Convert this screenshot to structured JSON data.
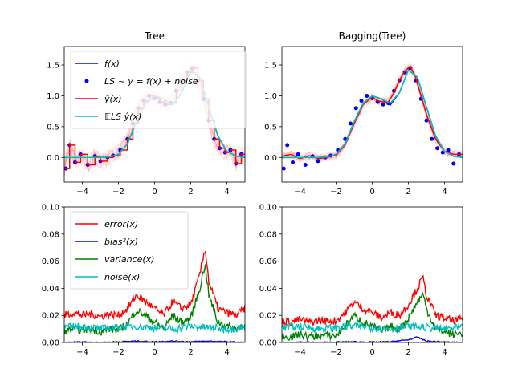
{
  "chart_data": [
    {
      "type": "line",
      "title": "Tree",
      "xlim": [
        -5,
        5
      ],
      "ylim": [
        -0.4,
        1.8
      ],
      "xticks": [
        -4,
        -2,
        0,
        2,
        4
      ],
      "xtick_labels": [
        "−4",
        "−2",
        "0",
        "2",
        "4"
      ],
      "yticks": [
        0.0,
        0.5,
        1.0,
        1.5
      ],
      "ytick_labels": [
        "0.0",
        "0.5",
        "1.0",
        "1.5"
      ],
      "legend_position": "top-left",
      "legend": [
        {
          "label": "f(x)",
          "color": "#0000ff",
          "marker": "line"
        },
        {
          "label": "LS ~ y = f(x) + noise",
          "color": "#0000ff",
          "marker": "dot"
        },
        {
          "label": "ŷ(x)",
          "color": "#ff0000",
          "marker": "line"
        },
        {
          "label": "𝔼LS ŷ(x)",
          "color": "#00bfbf",
          "marker": "line"
        }
      ],
      "series": [
        {
          "role": "f",
          "color": "#0000ff",
          "x": [
            -5,
            -4.5,
            -4,
            -3.5,
            -3,
            -2.5,
            -2,
            -1.5,
            -1,
            -0.5,
            0,
            0.5,
            1,
            1.5,
            2,
            2.5,
            3,
            3.5,
            4,
            4.5,
            5
          ],
          "y": [
            0.0,
            0.0,
            0.0,
            0.0,
            0.0,
            0.01,
            0.05,
            0.22,
            0.58,
            0.88,
            1.0,
            0.95,
            0.85,
            1.05,
            1.42,
            1.3,
            0.82,
            0.35,
            0.1,
            0.02,
            0.0
          ]
        },
        {
          "role": "samples",
          "color": "#0000ff",
          "x": [
            -4.9,
            -4.7,
            -4.4,
            -4.1,
            -3.7,
            -3.3,
            -3.0,
            -2.6,
            -2.3,
            -1.9,
            -1.5,
            -1.2,
            -0.9,
            -0.6,
            -0.3,
            0.0,
            0.3,
            0.6,
            0.9,
            1.2,
            1.5,
            1.8,
            2.1,
            2.4,
            2.7,
            3.0,
            3.3,
            3.6,
            3.9,
            4.2,
            4.5,
            4.8
          ],
          "y": [
            -0.18,
            0.2,
            -0.08,
            0.05,
            -0.12,
            0.02,
            -0.06,
            0.0,
            0.03,
            0.12,
            0.3,
            0.55,
            0.8,
            0.92,
            1.0,
            0.96,
            0.9,
            0.86,
            0.88,
            1.08,
            1.25,
            1.38,
            1.45,
            1.25,
            0.95,
            0.6,
            0.3,
            0.15,
            0.08,
            0.12,
            -0.1,
            0.05
          ]
        },
        {
          "role": "y_hat",
          "color": "#ff0000",
          "x": [
            -5,
            -4.7,
            -4.4,
            -4.1,
            -3.7,
            -3.3,
            -3.0,
            -2.6,
            -2.3,
            -1.9,
            -1.5,
            -1.2,
            -0.9,
            -0.6,
            -0.3,
            0.0,
            0.3,
            0.6,
            0.9,
            1.2,
            1.5,
            1.8,
            2.1,
            2.4,
            2.7,
            3.0,
            3.3,
            3.6,
            3.9,
            4.2,
            4.5,
            4.8,
            5
          ],
          "y": [
            -0.18,
            0.2,
            -0.08,
            0.05,
            -0.12,
            0.02,
            -0.06,
            0.0,
            0.03,
            0.12,
            0.3,
            0.55,
            0.8,
            0.92,
            1.0,
            0.96,
            0.9,
            0.86,
            0.88,
            1.08,
            1.25,
            1.38,
            1.45,
            1.25,
            0.95,
            0.6,
            0.3,
            0.15,
            0.08,
            0.12,
            -0.1,
            0.05,
            0.05
          ]
        },
        {
          "role": "expected",
          "color": "#00bfbf",
          "x": [
            -5,
            -4.5,
            -4,
            -3.5,
            -3,
            -2.5,
            -2,
            -1.5,
            -1,
            -0.5,
            0,
            0.5,
            1,
            1.5,
            2,
            2.5,
            3,
            3.5,
            4,
            4.5,
            5
          ],
          "y": [
            0.0,
            0.0,
            0.0,
            0.0,
            0.0,
            0.01,
            0.05,
            0.22,
            0.58,
            0.88,
            1.0,
            0.95,
            0.85,
            1.05,
            1.42,
            1.3,
            0.82,
            0.35,
            0.1,
            0.02,
            0.0
          ]
        }
      ]
    },
    {
      "type": "line",
      "title": "Bagging(Tree)",
      "xlim": [
        -5,
        5
      ],
      "ylim": [
        -0.4,
        1.8
      ],
      "xticks": [
        -4,
        -2,
        0,
        2,
        4
      ],
      "xtick_labels": [
        "−4",
        "−2",
        "0",
        "2",
        "4"
      ],
      "yticks": [
        0.0,
        0.5,
        1.0,
        1.5
      ],
      "ytick_labels": [
        "0.0",
        "0.5",
        "1.0",
        "1.5"
      ],
      "series": [
        {
          "role": "f",
          "color": "#0000ff",
          "x": [
            -5,
            -4.5,
            -4,
            -3.5,
            -3,
            -2.5,
            -2,
            -1.5,
            -1,
            -0.5,
            0,
            0.5,
            1,
            1.5,
            2,
            2.5,
            3,
            3.5,
            4,
            4.5,
            5
          ],
          "y": [
            0.0,
            0.0,
            0.0,
            0.0,
            0.0,
            0.01,
            0.05,
            0.22,
            0.58,
            0.88,
            1.0,
            0.95,
            0.85,
            1.05,
            1.42,
            1.3,
            0.82,
            0.35,
            0.1,
            0.02,
            0.0
          ]
        },
        {
          "role": "samples",
          "color": "#0000ff",
          "x": [
            -4.9,
            -4.7,
            -4.4,
            -4.1,
            -3.7,
            -3.3,
            -3.0,
            -2.6,
            -2.3,
            -1.9,
            -1.5,
            -1.2,
            -0.9,
            -0.6,
            -0.3,
            0.0,
            0.3,
            0.6,
            0.9,
            1.2,
            1.5,
            1.8,
            2.1,
            2.4,
            2.7,
            3.0,
            3.3,
            3.6,
            3.9,
            4.2,
            4.5,
            4.8
          ],
          "y": [
            -0.18,
            0.2,
            -0.08,
            0.05,
            -0.12,
            0.02,
            -0.06,
            0.0,
            0.03,
            0.12,
            0.3,
            0.55,
            0.8,
            0.92,
            1.0,
            0.96,
            0.9,
            0.86,
            0.88,
            1.08,
            1.25,
            1.38,
            1.45,
            1.25,
            0.95,
            0.6,
            0.3,
            0.15,
            0.08,
            0.12,
            -0.1,
            0.05
          ]
        },
        {
          "role": "y_hat",
          "color": "#ff0000",
          "x": [
            -5,
            -4.5,
            -4,
            -3.5,
            -3,
            -2.5,
            -2,
            -1.5,
            -1,
            -0.5,
            0,
            0.3,
            0.6,
            0.9,
            1.2,
            1.5,
            1.8,
            2.1,
            2.4,
            2.7,
            3.0,
            3.5,
            4,
            4.5,
            5
          ],
          "y": [
            0.02,
            0.05,
            -0.02,
            0.03,
            -0.02,
            0.0,
            0.04,
            0.2,
            0.55,
            0.86,
            0.98,
            0.92,
            0.9,
            0.9,
            1.05,
            1.25,
            1.4,
            1.48,
            1.3,
            1.0,
            0.7,
            0.3,
            0.1,
            0.05,
            0.05
          ]
        },
        {
          "role": "expected",
          "color": "#00bfbf",
          "x": [
            -5,
            -4.5,
            -4,
            -3.5,
            -3,
            -2.5,
            -2,
            -1.5,
            -1,
            -0.5,
            0,
            0.5,
            1,
            1.5,
            2,
            2.5,
            3,
            3.5,
            4,
            4.5,
            5
          ],
          "y": [
            0.0,
            0.0,
            0.0,
            0.0,
            0.0,
            0.01,
            0.05,
            0.22,
            0.58,
            0.88,
            1.0,
            0.95,
            0.88,
            1.05,
            1.42,
            1.3,
            0.82,
            0.35,
            0.1,
            0.02,
            0.0
          ]
        }
      ]
    },
    {
      "type": "line",
      "title": "",
      "xlim": [
        -5,
        5
      ],
      "ylim": [
        0,
        0.1
      ],
      "xticks": [
        -4,
        -2,
        0,
        2,
        4
      ],
      "xtick_labels": [
        "−4",
        "−2",
        "0",
        "2",
        "4"
      ],
      "yticks": [
        0.0,
        0.02,
        0.04,
        0.06,
        0.08,
        0.1
      ],
      "ytick_labels": [
        "0.00",
        "0.02",
        "0.04",
        "0.06",
        "0.08",
        "0.10"
      ],
      "legend_position": "top-left",
      "legend": [
        {
          "label": "error(x)",
          "color": "#ff0000",
          "marker": "line"
        },
        {
          "label": "bias²(x)",
          "color": "#0000ff",
          "marker": "line"
        },
        {
          "label": "variance(x)",
          "color": "#008000",
          "marker": "line"
        },
        {
          "label": "noise(x)",
          "color": "#00bfbf",
          "marker": "line"
        }
      ],
      "series": [
        {
          "name": "error(x)",
          "color": "#ff0000",
          "x": [
            -5,
            -4.5,
            -4,
            -3.5,
            -3,
            -2.5,
            -2,
            -1.5,
            -1,
            -0.5,
            0,
            0.5,
            1,
            1.5,
            2,
            2.5,
            2.8,
            3,
            3.5,
            4,
            4.5,
            5
          ],
          "y": [
            0.02,
            0.022,
            0.02,
            0.021,
            0.019,
            0.021,
            0.02,
            0.025,
            0.035,
            0.03,
            0.025,
            0.02,
            0.03,
            0.025,
            0.028,
            0.05,
            0.07,
            0.045,
            0.025,
            0.022,
            0.02,
            0.025
          ]
        },
        {
          "name": "bias²(x)",
          "color": "#0000ff",
          "x": [
            -5,
            -4,
            -3,
            -2,
            -1,
            0,
            1,
            2,
            3,
            4,
            5
          ],
          "y": [
            0.0,
            0.0005,
            0.0,
            0.0005,
            0.001,
            0.0005,
            0.001,
            0.0005,
            0.001,
            0.0005,
            0.0
          ]
        },
        {
          "name": "variance(x)",
          "color": "#008000",
          "x": [
            -5,
            -4.5,
            -4,
            -3.5,
            -3,
            -2.5,
            -2,
            -1.5,
            -1,
            -0.5,
            0,
            0.5,
            1,
            1.5,
            2,
            2.5,
            2.8,
            3,
            3.5,
            4,
            4.5,
            5
          ],
          "y": [
            0.008,
            0.01,
            0.009,
            0.01,
            0.008,
            0.01,
            0.009,
            0.014,
            0.024,
            0.02,
            0.015,
            0.01,
            0.02,
            0.015,
            0.018,
            0.04,
            0.058,
            0.035,
            0.015,
            0.012,
            0.01,
            0.014
          ]
        },
        {
          "name": "noise(x)",
          "color": "#00bfbf",
          "x": [
            -5,
            -4,
            -3,
            -2,
            -1,
            0,
            1,
            2,
            3,
            4,
            5
          ],
          "y": [
            0.011,
            0.012,
            0.01,
            0.011,
            0.012,
            0.011,
            0.01,
            0.012,
            0.011,
            0.01,
            0.011
          ]
        }
      ]
    },
    {
      "type": "line",
      "title": "",
      "xlim": [
        -5,
        5
      ],
      "ylim": [
        0,
        0.1
      ],
      "xticks": [
        -4,
        -2,
        0,
        2,
        4
      ],
      "xtick_labels": [
        "−4",
        "−2",
        "0",
        "2",
        "4"
      ],
      "yticks": [
        0.0,
        0.02,
        0.04,
        0.06,
        0.08,
        0.1
      ],
      "ytick_labels": [
        "0.00",
        "0.02",
        "0.04",
        "0.06",
        "0.08",
        "0.10"
      ],
      "series": [
        {
          "name": "error(x)",
          "color": "#ff0000",
          "x": [
            -5,
            -4.5,
            -4,
            -3.5,
            -3,
            -2.5,
            -2,
            -1.5,
            -1,
            -0.5,
            0,
            0.5,
            1,
            1.5,
            2,
            2.5,
            2.8,
            3,
            3.5,
            4,
            4.5,
            5
          ],
          "y": [
            0.016,
            0.015,
            0.017,
            0.015,
            0.016,
            0.016,
            0.016,
            0.022,
            0.03,
            0.025,
            0.022,
            0.018,
            0.022,
            0.02,
            0.028,
            0.04,
            0.048,
            0.035,
            0.02,
            0.018,
            0.016,
            0.017
          ]
        },
        {
          "name": "bias²(x)",
          "color": "#0000ff",
          "x": [
            -5,
            -4,
            -3,
            -2,
            -1,
            0,
            1,
            2,
            2.5,
            3,
            4,
            5
          ],
          "y": [
            0.0,
            0.0003,
            0.0,
            0.0003,
            0.0005,
            0.0003,
            0.0005,
            0.002,
            0.004,
            0.001,
            0.0003,
            0.0
          ]
        },
        {
          "name": "variance(x)",
          "color": "#008000",
          "x": [
            -5,
            -4.5,
            -4,
            -3.5,
            -3,
            -2.5,
            -2,
            -1.5,
            -1,
            -0.5,
            0,
            0.5,
            1,
            1.5,
            2,
            2.5,
            2.8,
            3,
            3.5,
            4,
            4.5,
            5
          ],
          "y": [
            0.005,
            0.004,
            0.006,
            0.004,
            0.005,
            0.005,
            0.005,
            0.012,
            0.02,
            0.015,
            0.012,
            0.008,
            0.012,
            0.01,
            0.018,
            0.03,
            0.036,
            0.025,
            0.01,
            0.008,
            0.006,
            0.007
          ]
        },
        {
          "name": "noise(x)",
          "color": "#00bfbf",
          "x": [
            -5,
            -4,
            -3,
            -2,
            -1,
            0,
            1,
            2,
            3,
            4,
            5
          ],
          "y": [
            0.011,
            0.012,
            0.01,
            0.011,
            0.012,
            0.011,
            0.01,
            0.012,
            0.011,
            0.01,
            0.011
          ]
        }
      ]
    }
  ]
}
